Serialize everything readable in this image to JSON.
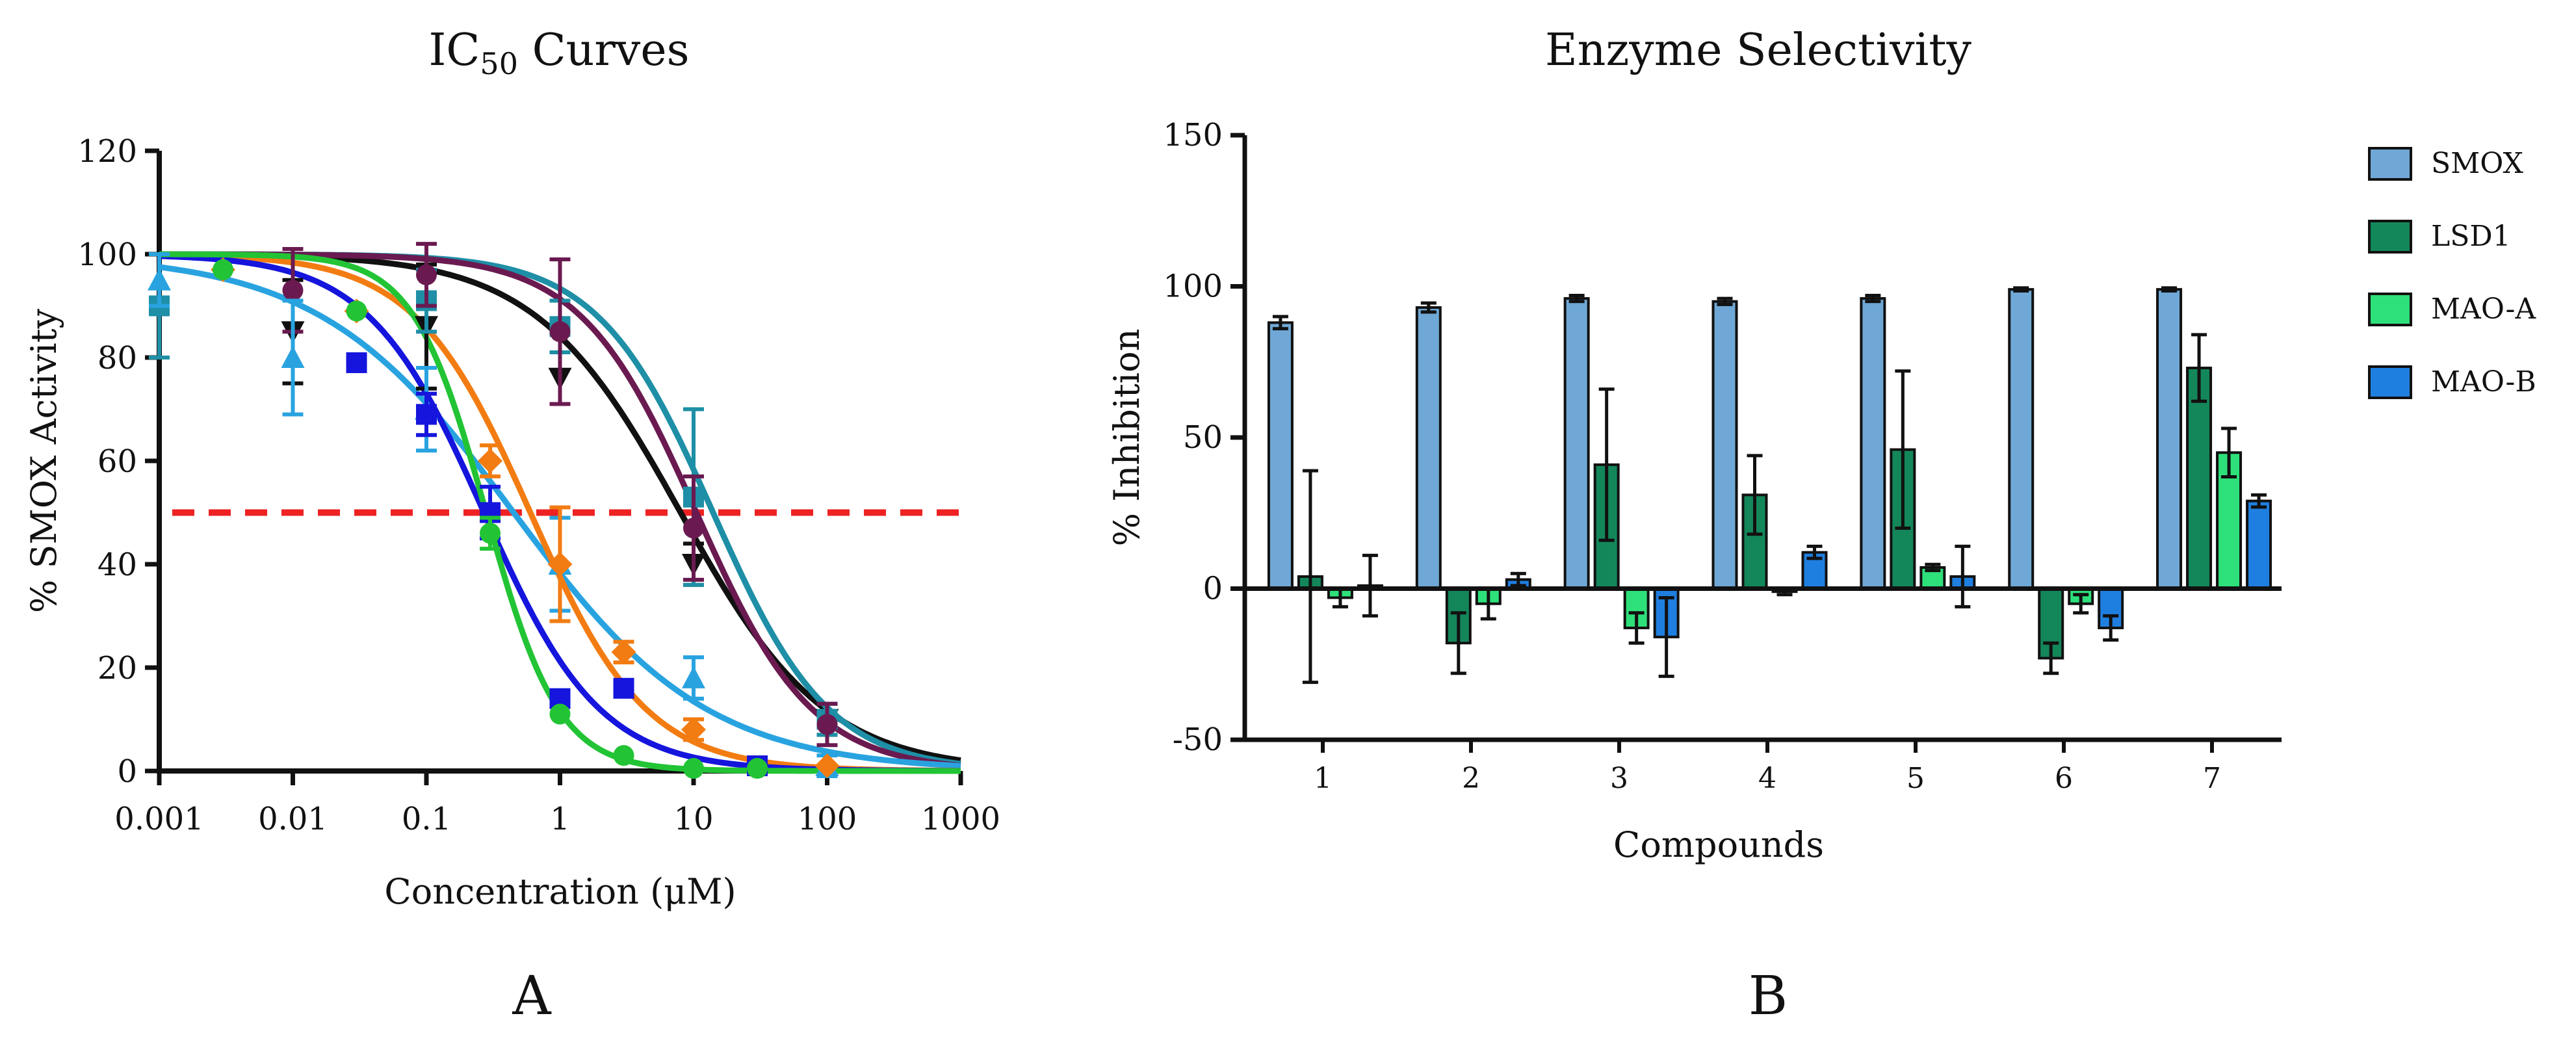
{
  "chart_data": [
    {
      "type": "line",
      "panel_label": "A",
      "title": "IC50 Curves",
      "title_main": "IC",
      "title_sub": "50",
      "title_rest": " Curves",
      "xlabel": "Concentration (μM)",
      "ylabel": "% SMOX Activity",
      "xscale": "log",
      "xlim": [
        0.001,
        1000
      ],
      "ylim": [
        0,
        120
      ],
      "xticks": [
        "0.001",
        "0.01",
        "0.1",
        "1",
        "10",
        "100",
        "1000"
      ],
      "yticks": [
        "0",
        "20",
        "40",
        "60",
        "80",
        "100",
        "120"
      ],
      "reference_line": {
        "y": 50,
        "color": "#ee2222",
        "style": "dashed"
      },
      "series": [
        {
          "name": "black",
          "color": "#111111",
          "marker": "triangle-down",
          "ic50": 8,
          "hill": 0.8,
          "points": [
            [
              0.01,
              85,
              10
            ],
            [
              0.1,
              86,
              12
            ],
            [
              1,
              76,
              5
            ],
            [
              10,
              40,
              4
            ],
            [
              100,
              10,
              3
            ]
          ]
        },
        {
          "name": "teal",
          "color": "#1e8fa6",
          "marker": "square",
          "ic50": 14,
          "hill": 1.0,
          "points": [
            [
              0.001,
              90,
              10
            ],
            [
              0.1,
              91,
              6
            ],
            [
              1,
              86,
              5
            ],
            [
              10,
              53,
              17
            ],
            [
              100,
              10,
              3
            ]
          ]
        },
        {
          "name": "purple",
          "color": "#6a1a50",
          "marker": "circle",
          "ic50": 10.5,
          "hill": 1.0,
          "points": [
            [
              0.01,
              93,
              8
            ],
            [
              0.1,
              96,
              6
            ],
            [
              1,
              85,
              14
            ],
            [
              10,
              47,
              10
            ],
            [
              100,
              9,
              4
            ]
          ]
        },
        {
          "name": "light-blue",
          "color": "#29a3e0",
          "marker": "triangle-up",
          "ic50": 0.45,
          "hill": 0.6,
          "points": [
            [
              0.001,
              95,
              5
            ],
            [
              0.01,
              80,
              11
            ],
            [
              0.1,
              70,
              8
            ],
            [
              1,
              40,
              9
            ],
            [
              10,
              18,
              4
            ],
            [
              100,
              1,
              2
            ]
          ]
        },
        {
          "name": "orange",
          "color": "#f27c12",
          "marker": "diamond",
          "ic50": 0.6,
          "hill": 1.0,
          "points": [
            [
              0.003,
              97,
              1
            ],
            [
              0.03,
              89,
              1
            ],
            [
              0.3,
              60,
              3
            ],
            [
              1,
              40,
              11
            ],
            [
              3,
              23,
              2
            ],
            [
              10,
              8,
              2
            ],
            [
              100,
              1,
              1
            ]
          ]
        },
        {
          "name": "blue",
          "color": "#1515dd",
          "marker": "square",
          "ic50": 0.27,
          "hill": 1.0,
          "points": [
            [
              0.03,
              79,
              1
            ],
            [
              0.1,
              69,
              4
            ],
            [
              0.3,
              50,
              5
            ],
            [
              1,
              14,
              1
            ],
            [
              3,
              16,
              1
            ],
            [
              30,
              1,
              1
            ]
          ]
        },
        {
          "name": "green",
          "color": "#22c435",
          "marker": "circle",
          "ic50": 0.28,
          "hill": 1.6,
          "points": [
            [
              0.003,
              97,
              1
            ],
            [
              0.03,
              89,
              1
            ],
            [
              0.3,
              46,
              3
            ],
            [
              1,
              11,
              1
            ],
            [
              3,
              3,
              1
            ],
            [
              10,
              0.5,
              1
            ],
            [
              30,
              0.5,
              1
            ]
          ]
        }
      ]
    },
    {
      "type": "bar",
      "panel_label": "B",
      "title": "Enzyme Selectivity",
      "xlabel": "Compounds",
      "ylabel": "% Inhibition",
      "ylim": [
        -50,
        150
      ],
      "yticks": [
        "-50",
        "0",
        "50",
        "100",
        "150"
      ],
      "categories": [
        "1",
        "2",
        "3",
        "4",
        "5",
        "6",
        "7"
      ],
      "series": [
        {
          "name": "SMOX",
          "color": "#6fa8d6",
          "values": [
            88,
            93,
            96,
            95,
            96,
            99,
            99
          ],
          "errors": [
            2,
            1.5,
            1,
            1,
            1,
            0.5,
            0.5
          ]
        },
        {
          "name": "LSD1",
          "color": "#14875a",
          "values": [
            4,
            -18,
            41,
            31,
            46,
            -23,
            73
          ],
          "errors": [
            35,
            10,
            25,
            13,
            26,
            5,
            11
          ]
        },
        {
          "name": "MAO-A",
          "color": "#2ee07a",
          "values": [
            -3,
            -5,
            -13,
            -1,
            7,
            -5,
            45
          ],
          "errors": [
            3,
            5,
            5,
            1,
            1,
            3,
            8
          ]
        },
        {
          "name": "MAO-B",
          "color": "#1f7fe0",
          "values": [
            1,
            3,
            -16,
            12,
            4,
            -13,
            29
          ],
          "errors": [
            10,
            2,
            13,
            2,
            10,
            4,
            2
          ]
        }
      ]
    }
  ]
}
